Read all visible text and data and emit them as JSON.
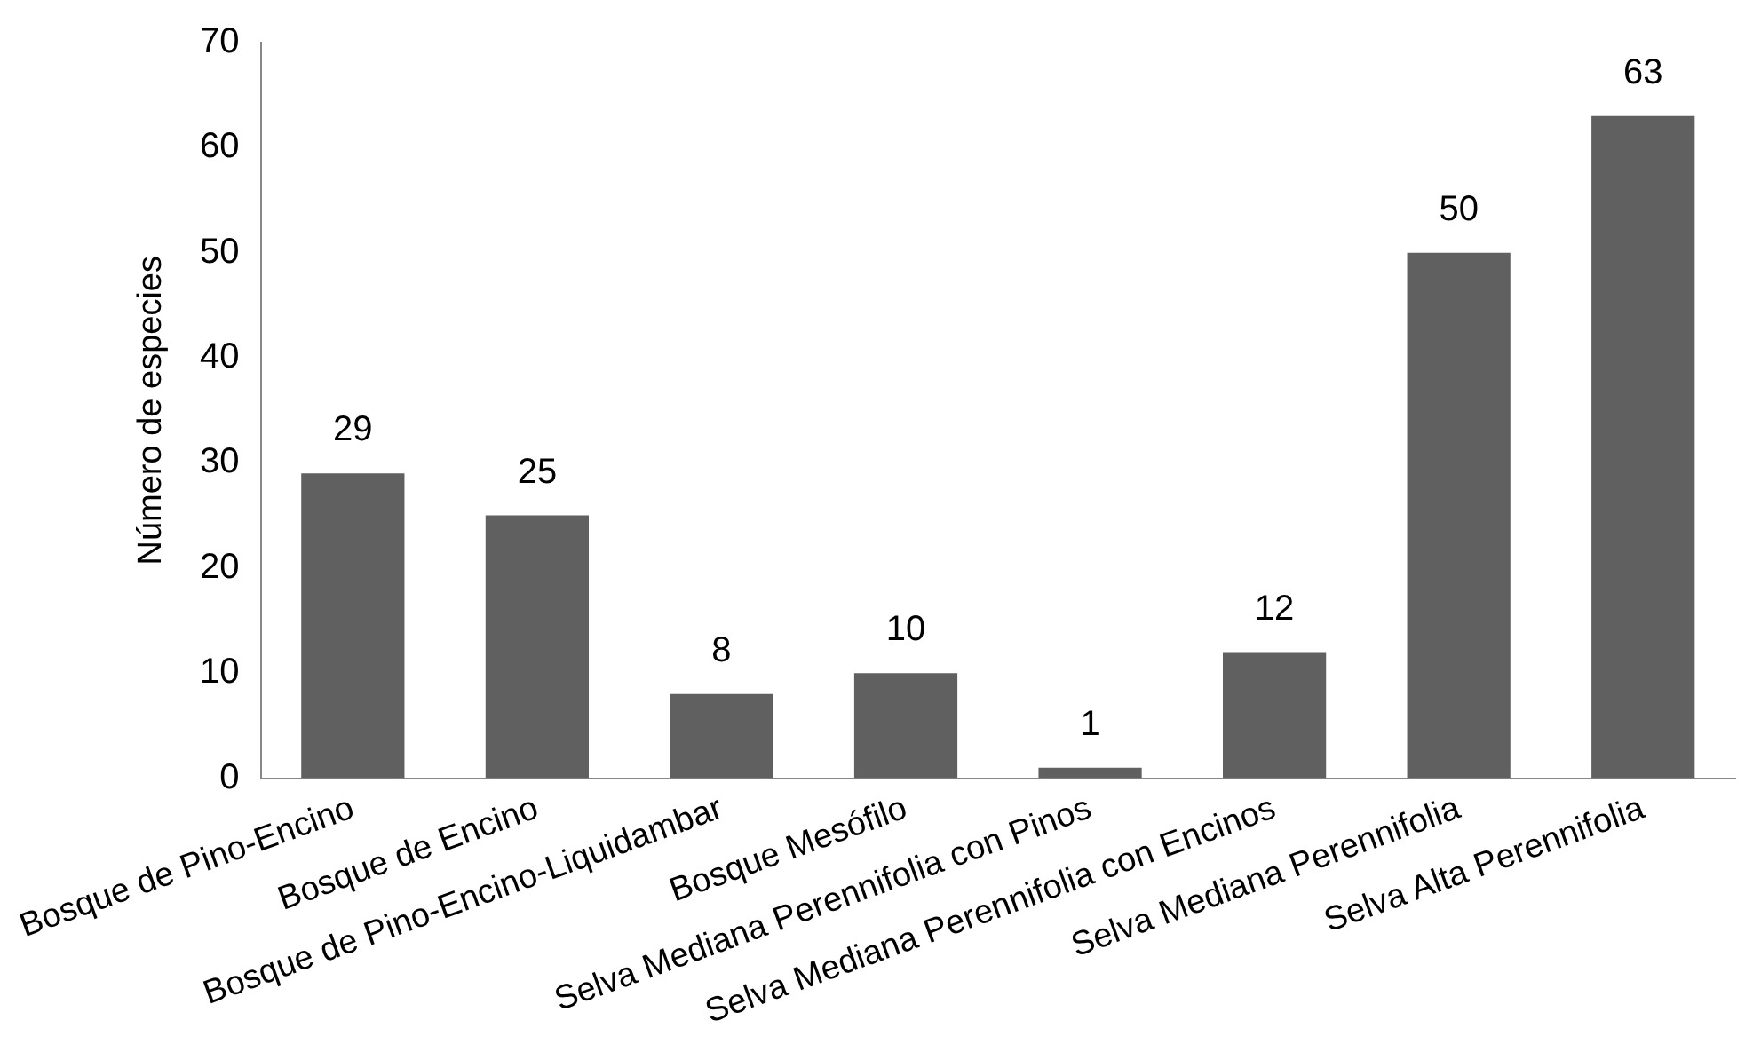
{
  "chart_data": {
    "type": "bar",
    "ylabel": "Número de especies",
    "categories": [
      "Bosque de Pino-Encino",
      "Bosque de Encino",
      "Bosque de Pino-Encino-Liquidambar",
      "Bosque Mesófilo",
      "Selva Mediana Perennifolia con Pinos",
      "Selva Mediana Perennifolia con Encinos",
      "Selva Mediana Perennifolia",
      "Selva Alta Perennifolia"
    ],
    "values": [
      29,
      25,
      8,
      10,
      1,
      12,
      50,
      63
    ],
    "color": "#606060",
    "ylim": [
      0,
      70
    ],
    "yticks": [
      0,
      10,
      20,
      30,
      40,
      50,
      60,
      70
    ],
    "grid": false,
    "legend": false,
    "data_labels": true
  }
}
